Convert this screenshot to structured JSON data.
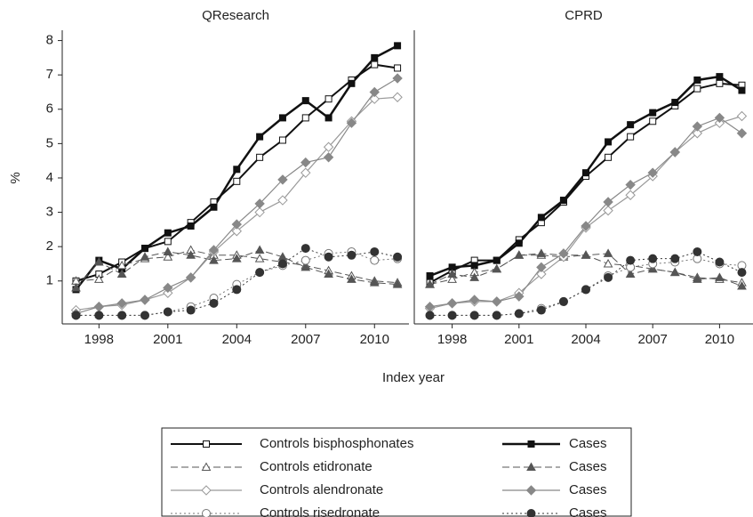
{
  "figure": {
    "ylabel": "%",
    "xlabel": "Index year"
  },
  "chart_data": [
    {
      "type": "line",
      "title": "QResearch",
      "x": [
        1997,
        1998,
        1999,
        2000,
        2001,
        2002,
        2003,
        2004,
        2005,
        2006,
        2007,
        2008,
        2009,
        2010,
        2011
      ],
      "xlim": [
        1996.4,
        2011.5
      ],
      "xticks": [
        1998,
        2001,
        2004,
        2007,
        2010
      ],
      "ylim": [
        -0.25,
        8.3
      ],
      "yticks": [
        1,
        2,
        3,
        4,
        5,
        6,
        7,
        8
      ],
      "series": [
        {
          "name": "Controls bisphosphonates",
          "color": "#111111",
          "line_style": "solid",
          "line_width": 2,
          "marker": "square",
          "marker_fill": "open",
          "values": [
            1.0,
            1.2,
            1.55,
            1.95,
            2.15,
            2.7,
            3.3,
            3.9,
            4.6,
            5.1,
            5.75,
            6.3,
            6.85,
            7.3,
            7.2
          ]
        },
        {
          "name": "Cases",
          "color": "#111111",
          "line_style": "solid",
          "line_width": 2.5,
          "marker": "square",
          "marker_fill": "filled",
          "values": [
            0.75,
            1.6,
            1.35,
            1.95,
            2.4,
            2.6,
            3.15,
            4.25,
            5.2,
            5.75,
            6.25,
            5.75,
            6.75,
            7.5,
            7.85
          ]
        },
        {
          "name": "Controls etidronate",
          "color": "#555555",
          "line_style": "dashed",
          "line_width": 1,
          "marker": "triangle",
          "marker_fill": "open",
          "values": [
            1.0,
            1.05,
            1.45,
            1.65,
            1.7,
            1.9,
            1.75,
            1.75,
            1.65,
            1.55,
            1.45,
            1.3,
            1.15,
            1.0,
            0.95
          ]
        },
        {
          "name": "Cases",
          "color": "#555555",
          "line_style": "dashed",
          "line_width": 1,
          "marker": "triangle",
          "marker_fill": "filled",
          "values": [
            0.8,
            1.55,
            1.2,
            1.7,
            1.85,
            1.75,
            1.6,
            1.65,
            1.9,
            1.7,
            1.4,
            1.2,
            1.05,
            0.95,
            0.9
          ]
        },
        {
          "name": "Controls alendronate",
          "color": "#999999",
          "line_style": "solid",
          "line_width": 1.2,
          "marker": "diamond",
          "marker_fill": "open",
          "values": [
            0.15,
            0.25,
            0.3,
            0.45,
            0.65,
            1.1,
            1.85,
            2.45,
            3.0,
            3.35,
            4.15,
            4.9,
            5.65,
            6.3,
            6.35
          ]
        },
        {
          "name": "Cases",
          "color": "#888888",
          "line_style": "solid",
          "line_width": 1.2,
          "marker": "diamond",
          "marker_fill": "filled",
          "values": [
            0.05,
            0.25,
            0.35,
            0.45,
            0.8,
            1.1,
            1.9,
            2.65,
            3.25,
            3.95,
            4.45,
            4.6,
            5.6,
            6.5,
            6.9
          ]
        },
        {
          "name": "Controls risedronate",
          "color": "#777777",
          "line_style": "dotted",
          "line_width": 1,
          "marker": "circle",
          "marker_fill": "open",
          "values": [
            0,
            0,
            0,
            0,
            0.1,
            0.25,
            0.5,
            0.9,
            1.25,
            1.45,
            1.6,
            1.8,
            1.85,
            1.6,
            1.65
          ]
        },
        {
          "name": "Cases",
          "color": "#333333",
          "line_style": "dotted",
          "line_width": 1,
          "marker": "circle",
          "marker_fill": "filled",
          "values": [
            0,
            0,
            0,
            0,
            0.1,
            0.15,
            0.35,
            0.75,
            1.25,
            1.5,
            1.95,
            1.7,
            1.75,
            1.85,
            1.7
          ]
        }
      ]
    },
    {
      "type": "line",
      "title": "CPRD",
      "x": [
        1997,
        1998,
        1999,
        2000,
        2001,
        2002,
        2003,
        2004,
        2005,
        2006,
        2007,
        2008,
        2009,
        2010,
        2011
      ],
      "xlim": [
        1996.3,
        2011.5
      ],
      "xticks": [
        1998,
        2001,
        2004,
        2007,
        2010
      ],
      "ylim": [
        -0.25,
        8.3
      ],
      "series": [
        {
          "name": "Controls bisphosphonates",
          "color": "#111111",
          "line_style": "solid",
          "line_width": 2,
          "marker": "square",
          "marker_fill": "open",
          "values": [
            0.95,
            1.3,
            1.6,
            1.6,
            2.2,
            2.7,
            3.3,
            4.05,
            4.6,
            5.2,
            5.65,
            6.1,
            6.6,
            6.75,
            6.7
          ]
        },
        {
          "name": "Cases",
          "color": "#111111",
          "line_style": "solid",
          "line_width": 2.5,
          "marker": "square",
          "marker_fill": "filled",
          "values": [
            1.15,
            1.4,
            1.45,
            1.6,
            2.1,
            2.85,
            3.35,
            4.15,
            5.05,
            5.55,
            5.9,
            6.2,
            6.85,
            6.95,
            6.55
          ]
        },
        {
          "name": "Controls etidronate",
          "color": "#555555",
          "line_style": "dashed",
          "line_width": 1,
          "marker": "triangle",
          "marker_fill": "open",
          "values": [
            0.9,
            1.05,
            1.25,
            1.35,
            1.75,
            1.75,
            1.7,
            1.75,
            1.5,
            1.45,
            1.35,
            1.25,
            1.1,
            1.05,
            0.95
          ]
        },
        {
          "name": "Cases",
          "color": "#555555",
          "line_style": "dashed",
          "line_width": 1,
          "marker": "triangle",
          "marker_fill": "filled",
          "values": [
            0.9,
            1.2,
            1.1,
            1.35,
            1.75,
            1.8,
            1.75,
            1.75,
            1.8,
            1.2,
            1.35,
            1.25,
            1.05,
            1.1,
            0.85
          ]
        },
        {
          "name": "Controls alendronate",
          "color": "#999999",
          "line_style": "solid",
          "line_width": 1.2,
          "marker": "diamond",
          "marker_fill": "open",
          "values": [
            0.2,
            0.35,
            0.4,
            0.4,
            0.65,
            1.2,
            1.7,
            2.55,
            3.05,
            3.5,
            4.05,
            4.75,
            5.3,
            5.6,
            5.8
          ]
        },
        {
          "name": "Cases",
          "color": "#888888",
          "line_style": "solid",
          "line_width": 1.2,
          "marker": "diamond",
          "marker_fill": "filled",
          "values": [
            0.25,
            0.35,
            0.45,
            0.4,
            0.55,
            1.4,
            1.8,
            2.6,
            3.3,
            3.8,
            4.15,
            4.75,
            5.5,
            5.75,
            5.3
          ]
        },
        {
          "name": "Controls risedronate",
          "color": "#777777",
          "line_style": "dotted",
          "line_width": 1,
          "marker": "circle",
          "marker_fill": "open",
          "values": [
            0,
            0,
            0,
            0,
            0.05,
            0.2,
            0.4,
            0.75,
            1.15,
            1.4,
            1.5,
            1.55,
            1.65,
            1.5,
            1.45
          ]
        },
        {
          "name": "Cases",
          "color": "#333333",
          "line_style": "dotted",
          "line_width": 1,
          "marker": "circle",
          "marker_fill": "filled",
          "values": [
            0,
            0,
            0,
            0,
            0.05,
            0.15,
            0.4,
            0.75,
            1.1,
            1.6,
            1.65,
            1.65,
            1.85,
            1.55,
            1.25
          ]
        }
      ]
    }
  ]
}
